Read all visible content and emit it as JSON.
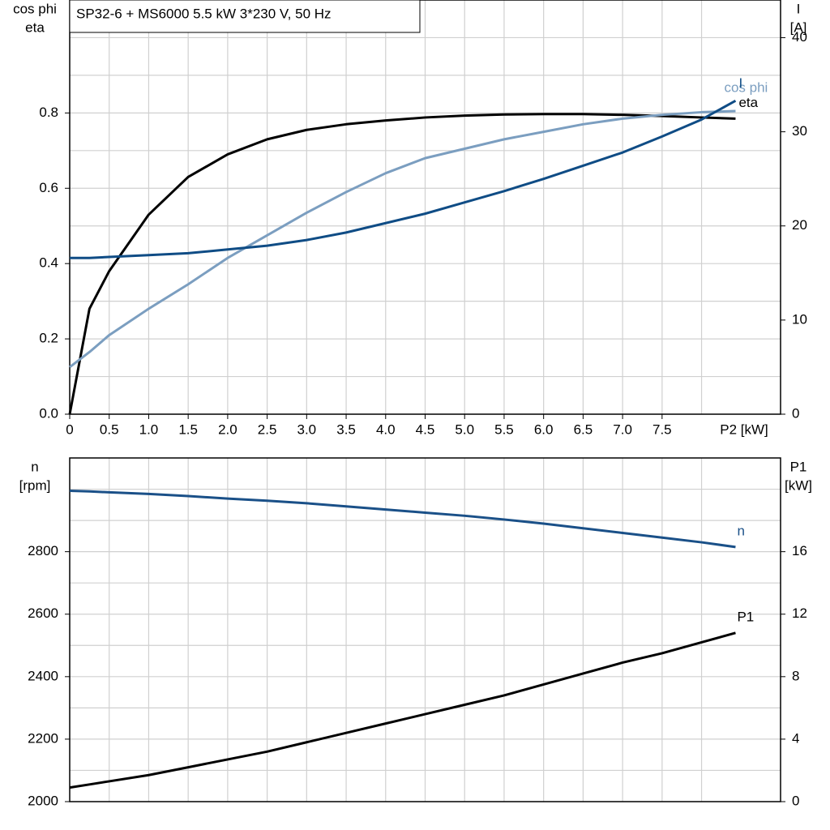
{
  "chart_data": [
    {
      "type": "line",
      "title": "SP32-6 + MS6000   5.5 kW   3*230 V, 50 Hz",
      "y_label": [
        "cos phi",
        "eta"
      ],
      "y2_label": [
        "I",
        "[A]"
      ],
      "x_label": "P2 [kW]",
      "x": [
        0,
        0.25,
        0.5,
        1,
        1.5,
        2,
        2.5,
        3,
        3.5,
        4,
        4.5,
        5,
        5.5,
        6,
        6.5,
        7,
        7.5,
        8,
        8.43
      ],
      "xlim": [
        0,
        9
      ],
      "xticks": [
        0,
        0.5,
        {
          "value": 1,
          "label": "1.0"
        },
        1.5,
        {
          "value": 2,
          "label": "2.0"
        },
        2.5,
        {
          "value": 3,
          "label": "3.0"
        },
        3.5,
        {
          "value": 4,
          "label": "4.0"
        },
        4.5,
        {
          "value": 5,
          "label": "5.0"
        },
        5.5,
        {
          "value": 6,
          "label": "6.0"
        },
        6.5,
        {
          "value": 7,
          "label": "7.0"
        },
        7.5
      ],
      "xgrid": [
        0.5,
        1,
        1.5,
        2,
        2.5,
        3,
        3.5,
        4,
        4.5,
        5,
        5.5,
        6,
        6.5,
        7,
        7.5,
        8
      ],
      "ylim": [
        0,
        1.1
      ],
      "yticks": [
        {
          "value": 0,
          "label": "0.0"
        },
        0.2,
        0.4,
        0.6,
        0.8
      ],
      "ygrid": [
        0.1,
        0.2,
        0.3,
        0.4,
        0.5,
        0.6,
        0.7,
        0.8,
        0.9,
        1.0
      ],
      "y2lim": [
        0,
        44
      ],
      "y2ticks": [
        0,
        10,
        20,
        30,
        40
      ],
      "grid": true,
      "series": [
        {
          "name": "eta",
          "color": "#000000",
          "values": [
            0,
            0.28,
            0.38,
            0.53,
            0.63,
            0.69,
            0.73,
            0.755,
            0.77,
            0.78,
            0.788,
            0.793,
            0.796,
            0.797,
            0.797,
            0.795,
            0.792,
            0.788,
            0.785
          ]
        },
        {
          "name": "cos phi",
          "color": "#7b9ec0",
          "values": [
            0.125,
            0.165,
            0.21,
            0.28,
            0.345,
            0.415,
            0.475,
            0.535,
            0.59,
            0.64,
            0.68,
            0.705,
            0.73,
            0.75,
            0.77,
            0.785,
            0.795,
            0.802,
            0.805
          ]
        },
        {
          "name": "I",
          "color": "#0f4c85",
          "axis": "y2",
          "values": [
            16.6,
            16.6,
            16.7,
            16.9,
            17.1,
            17.5,
            17.9,
            18.5,
            19.3,
            20.3,
            21.3,
            22.5,
            23.7,
            25.0,
            26.4,
            27.8,
            29.5,
            31.3,
            33.3
          ]
        }
      ]
    },
    {
      "type": "line",
      "y_label": [
        "n",
        "[rpm]"
      ],
      "y2_label": [
        "P1",
        "[kW]"
      ],
      "x": [
        0,
        0.25,
        0.5,
        1,
        1.5,
        2,
        2.5,
        3,
        3.5,
        4,
        4.5,
        5,
        5.5,
        6,
        6.5,
        7,
        7.5,
        8,
        8.43
      ],
      "xlim": [
        0,
        9
      ],
      "xgrid": [
        0.5,
        1,
        1.5,
        2,
        2.5,
        3,
        3.5,
        4,
        4.5,
        5,
        5.5,
        6,
        6.5,
        7,
        7.5,
        8
      ],
      "ylim": [
        2000,
        3100
      ],
      "yticks": [
        2000,
        2200,
        2400,
        2600,
        2800
      ],
      "ygrid": [
        2100,
        2200,
        2300,
        2400,
        2500,
        2600,
        2700,
        2800,
        2900,
        3000
      ],
      "y2lim": [
        0,
        22
      ],
      "y2ticks": [
        0,
        4,
        8,
        12,
        16
      ],
      "grid": true,
      "series": [
        {
          "name": "n",
          "color": "#1a5088",
          "values": [
            2995,
            2993,
            2990,
            2985,
            2978,
            2970,
            2963,
            2955,
            2945,
            2935,
            2925,
            2915,
            2903,
            2890,
            2875,
            2860,
            2845,
            2830,
            2815
          ]
        },
        {
          "name": "P1",
          "color": "#000000",
          "axis": "y2",
          "values": [
            0.9,
            1.1,
            1.3,
            1.7,
            2.2,
            2.7,
            3.2,
            3.8,
            4.4,
            5.0,
            5.6,
            6.2,
            6.8,
            7.5,
            8.2,
            8.9,
            9.5,
            10.2,
            10.8
          ]
        }
      ]
    }
  ]
}
